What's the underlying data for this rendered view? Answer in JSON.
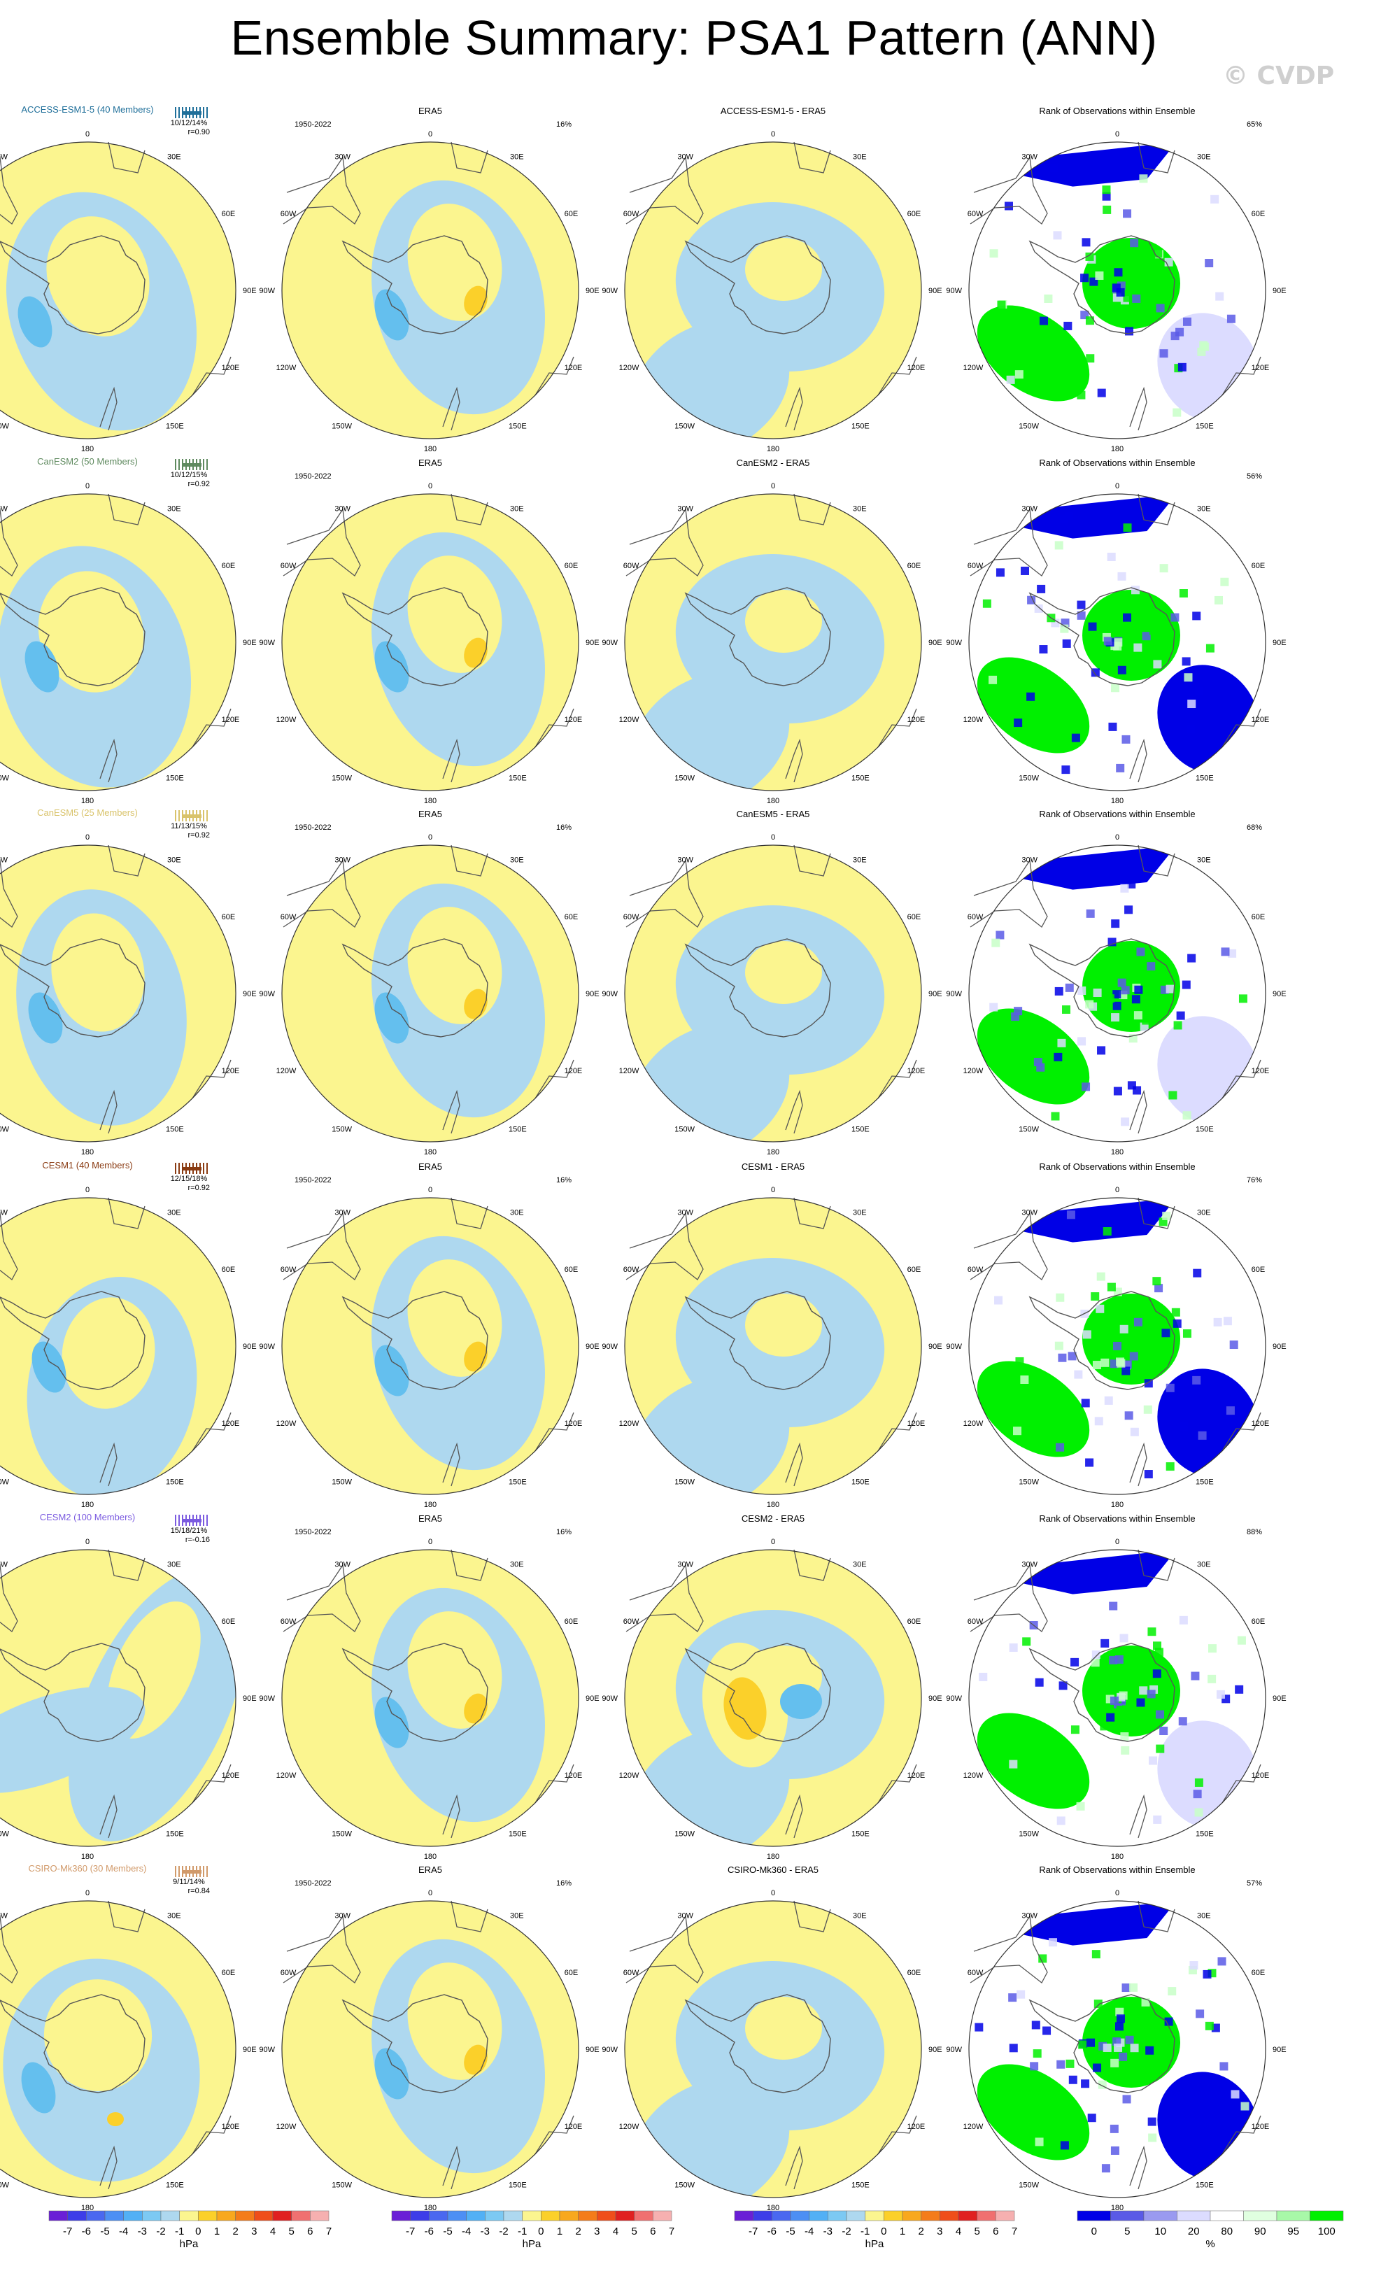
{
  "title": "Ensemble Summary: PSA1 Pattern (ANN)",
  "watermark": "© CVDP",
  "colors": {
    "ocean_neg_light": "#aed8ef",
    "neg_mid": "#64bfee",
    "pos_light": "#fbf58f",
    "pos_mid": "#fbd02a",
    "coast": "#555555",
    "rank_dark_blue": "#0000e6",
    "rank_mid_blue": "#5a5ae6",
    "rank_light_blue": "#dcdcff",
    "rank_light_green": "#c8ffc8",
    "rank_green": "#00f000"
  },
  "map_labels": {
    "lon": [
      "0",
      "30E",
      "60E",
      "90E",
      "120E",
      "150E",
      "180",
      "150W",
      "120W",
      "90W",
      "60W",
      "30W"
    ],
    "period": "1950-2022"
  },
  "rows": [
    {
      "model_title": "ACCESS-ESM1-5 (40 Members)",
      "model_color": "#1f6f9a",
      "stats": "10/12/14%",
      "r": "r=0.90",
      "era5_title": "ERA5",
      "era5_pct": "16%",
      "diff_title": "ACCESS-ESM1-5 - ERA5",
      "rank_title": "Rank of Observations within Ensemble",
      "rank_pct": "65%"
    },
    {
      "model_title": "CanESM2 (50 Members)",
      "model_color": "#5f8a5f",
      "stats": "10/12/15%",
      "r": "r=0.92",
      "era5_title": "ERA5",
      "era5_pct": "",
      "diff_title": "CanESM2 - ERA5",
      "rank_title": "Rank of Observations within Ensemble",
      "rank_pct": "56%"
    },
    {
      "model_title": "CanESM5 (25 Members)",
      "model_color": "#d9c36b",
      "stats": "11/13/15%",
      "r": "r=0.92",
      "era5_title": "ERA5",
      "era5_pct": "16%",
      "diff_title": "CanESM5 - ERA5",
      "rank_title": "Rank of Observations within Ensemble",
      "rank_pct": "68%"
    },
    {
      "model_title": "CESM1 (40 Members)",
      "model_color": "#8a3b12",
      "stats": "12/15/18%",
      "r": "r=0.92",
      "era5_title": "ERA5",
      "era5_pct": "16%",
      "diff_title": "CESM1 - ERA5",
      "rank_title": "Rank of Observations within Ensemble",
      "rank_pct": "76%"
    },
    {
      "model_title": "CESM2 (100 Members)",
      "model_color": "#7b5be0",
      "stats": "15/18/21%",
      "r": "r=-0.16",
      "era5_title": "ERA5",
      "era5_pct": "16%",
      "diff_title": "CESM2 - ERA5",
      "rank_title": "Rank of Observations within Ensemble",
      "rank_pct": "88%"
    },
    {
      "model_title": "CSIRO-Mk360 (30 Members)",
      "model_color": "#d19a6a",
      "stats": "9/11/14%",
      "r": "r=0.84",
      "era5_title": "ERA5",
      "era5_pct": "16%",
      "diff_title": "CSIRO-Mk360 - ERA5",
      "rank_title": "Rank of Observations within Ensemble",
      "rank_pct": "57%"
    }
  ],
  "colorbars": {
    "hpa": {
      "labels": [
        "-7",
        "-6",
        "-5",
        "-4",
        "-3",
        "-2",
        "-1",
        "0",
        "1",
        "2",
        "3",
        "4",
        "5",
        "6",
        "7"
      ],
      "colors": [
        "#6a1fd6",
        "#3d3de8",
        "#4a68f0",
        "#4d8ff4",
        "#52b0f5",
        "#7cc9f3",
        "#aed8ef",
        "#fbf58f",
        "#fbd02a",
        "#f8a81e",
        "#f47c1a",
        "#ef4e1a",
        "#e02020",
        "#f07070",
        "#f6b0b0"
      ],
      "unit": "hPa"
    },
    "rank": {
      "labels": [
        "0",
        "5",
        "10",
        "20",
        "80",
        "90",
        "95",
        "100"
      ],
      "colors": [
        "#0000e6",
        "#5a5ae6",
        "#9a9af0",
        "#dcdcff",
        "#ffffff",
        "#e0ffe0",
        "#a8f8a8",
        "#00f000"
      ],
      "unit": "%"
    }
  },
  "chart_data": {
    "type": "heatmap",
    "description_fields": "panel grid of polar-stereographic sea level pressure maps",
    "columns": [
      "model ensemble mean",
      "ERA5",
      "model - ERA5",
      "Rank of Observations within Ensemble"
    ],
    "models": [
      "ACCESS-ESM1-5",
      "CanESM2",
      "CanESM5",
      "CESM1",
      "CESM2",
      "CSIRO-Mk360"
    ],
    "members": [
      40,
      50,
      25,
      40,
      100,
      30
    ],
    "pattern_correlation": [
      0.9,
      0.92,
      0.92,
      0.92,
      -0.16,
      0.84
    ],
    "pct_variance_explained_model": [
      "10/12/14%",
      "10/12/15%",
      "11/13/15%",
      "12/15/18%",
      "15/18/21%",
      "9/11/14%"
    ],
    "pct_variance_explained_era5": "16%",
    "rank_pct": [
      65,
      56,
      68,
      76,
      88,
      57
    ],
    "hpa_scale": [
      -7,
      7
    ],
    "rank_scale": [
      0,
      100
    ]
  }
}
